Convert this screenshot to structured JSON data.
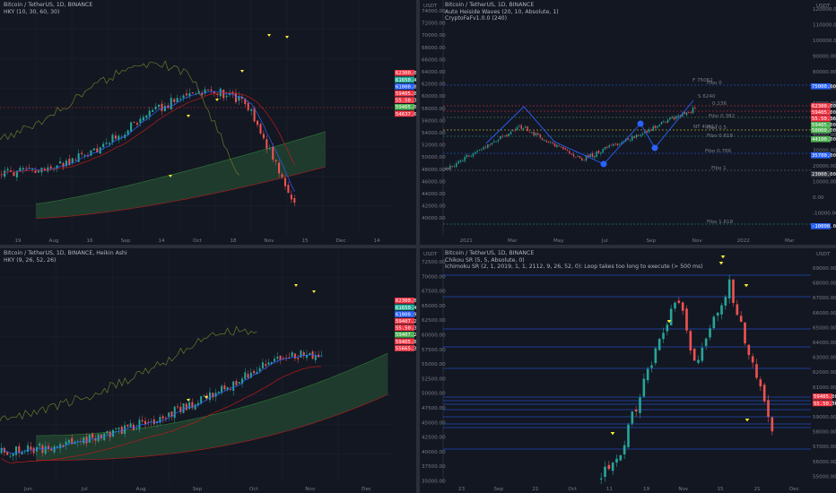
{
  "panes": [
    {
      "id": "p1",
      "legend": [
        "Bitcoin / TetherUS, 1D, BINANCE",
        "HKY (10, 30, 60, 30)"
      ],
      "price_axis": {
        "currency": "",
        "ticks": []
      },
      "time_axis": [
        "19",
        "Aug",
        "16",
        "Sep",
        "14",
        "Oct",
        "18",
        "Nov",
        "15",
        "Dec",
        "14"
      ],
      "price_tags": [
        {
          "text": "62300.00",
          "color": "#f23645"
        },
        {
          "text": "61650.46",
          "color": "#22ab94"
        },
        {
          "text": "61000.00",
          "color": "#2962ff"
        },
        {
          "text": "59405.00",
          "color": "#f23645"
        },
        {
          "text": "55.50.36",
          "color": "#f23645"
        },
        {
          "text": "59405.00",
          "color": "#4caf50"
        },
        {
          "text": "54637.61",
          "color": "#f23645"
        }
      ]
    },
    {
      "id": "p2",
      "legend": [
        "Bitcoin / TetherUS, 1D, BINANCE",
        "Auto Heiside Waves (20, 10, Absolute, 1)",
        "CryptoFaFv1.0.0 (240)"
      ],
      "left_axis": {
        "currency": "USDT",
        "ticks": [
          "74000.00",
          "72000.00",
          "70000.00",
          "68000.00",
          "66000.00",
          "64000.00",
          "62000.00",
          "60000.00",
          "58000.00",
          "56000.00",
          "54000.00",
          "52000.00",
          "50000.00",
          "48000.00",
          "46000.00",
          "44000.00",
          "42000.00",
          "40000.00"
        ]
      },
      "right_axis": {
        "currency": "USDT",
        "ticks": [
          "120000.00",
          "110000.00",
          "100000.00",
          "90000.00",
          "80000.00",
          "70000.00",
          "60000.00",
          "50000.00",
          "40000.00",
          "30000.00",
          "20000.00",
          "10000.00",
          "0.00",
          "-10000.00"
        ]
      },
      "time_axis": [
        "2021",
        "Mar",
        "May",
        "Jul",
        "Sep",
        "Nov",
        "2022",
        "Mar"
      ],
      "fib_labels": [
        "F 75062",
        "Fibo 0",
        "S 6240",
        "0.236",
        "Fibo 0.382",
        "NT 49517",
        "Fibo 0.5",
        "Fibo 0.618",
        "Fibo 0.786",
        "Fibo 1",
        "Fibo 1.618"
      ],
      "price_tags": [
        {
          "text": "75000.00",
          "color": "#2962ff"
        },
        {
          "text": "62300.00",
          "color": "#f23645"
        },
        {
          "text": "59405.00",
          "color": "#f23645"
        },
        {
          "text": "55.50.36",
          "color": "#f23645"
        },
        {
          "text": "59405.00",
          "color": "#4caf50"
        },
        {
          "text": "50000.00",
          "color": "#4caf50"
        },
        {
          "text": "44100.00",
          "color": "#4caf50"
        },
        {
          "text": "35700.00",
          "color": "#2962ff"
        },
        {
          "text": "23000.00",
          "color": "#363a45"
        },
        {
          "text": "-10000.00",
          "color": "#2962ff"
        }
      ]
    },
    {
      "id": "p3",
      "legend": [
        "Bitcoin / TetherUS, 1D, BINANCE, Heikin Ashi",
        "HKY (9, 26, 52, 26)"
      ],
      "time_axis": [
        "Jun",
        "Jul",
        "Aug",
        "Sep",
        "Oct",
        "Nov",
        "Dec"
      ],
      "price_tags": [
        {
          "text": "62300.00",
          "color": "#f23645"
        },
        {
          "text": "61650.46",
          "color": "#22ab94"
        },
        {
          "text": "61000.91",
          "color": "#2962ff"
        },
        {
          "text": "59407.23",
          "color": "#f23645"
        },
        {
          "text": "55.50.36",
          "color": "#f23645"
        },
        {
          "text": "59407.23",
          "color": "#4caf50"
        },
        {
          "text": "59405.00",
          "color": "#f23645"
        },
        {
          "text": "55665.39",
          "color": "#f23645"
        }
      ]
    },
    {
      "id": "p4",
      "legend": [
        "Bitcoin / TetherUS, 1D, BINANCE",
        "Chikou SR (5, 5, Absolute, 0)",
        "Ichimoku SR (2, 1, 2019, 1, 1, 2112, 9, 26, 52, 0): Loop takes too long to execute (> 500 ms)"
      ],
      "left_axis": {
        "currency": "USDT",
        "ticks": [
          "72500.00",
          "70000.00",
          "67500.00",
          "65000.00",
          "62500.00",
          "60000.00",
          "57500.00",
          "55000.00",
          "52500.00",
          "50000.00",
          "47500.00",
          "45000.00",
          "42500.00",
          "40000.00",
          "37500.00",
          "35000.00"
        ]
      },
      "right_axis": {
        "currency": "USDT",
        "ticks": [
          "69000.00",
          "68000.00",
          "67000.00",
          "66000.00",
          "65000.00",
          "64000.00",
          "63000.00",
          "62000.00",
          "61000.00",
          "60000.00",
          "59000.00",
          "58000.00",
          "57000.00",
          "56000.00",
          "55000.00"
        ]
      },
      "time_axis": [
        "23",
        "Sep",
        "21",
        "Oct",
        "11",
        "19",
        "Nov",
        "15",
        "21",
        "Dec"
      ],
      "price_tags": [
        {
          "text": "59405.00",
          "color": "#f23645"
        },
        {
          "text": "55.50.36",
          "color": "#f23645"
        }
      ]
    }
  ],
  "colors": {
    "bg": "#131722",
    "up": "#26a69a",
    "down": "#ef5350",
    "grid": "#1e222d",
    "text": "#b2b5be",
    "fast": "#2962ff",
    "slow": "#b71c1c",
    "lag": "#6b7a2a",
    "cloud_red": "#3d1418",
    "cloud_green": "#1f3b2e",
    "marker": "#ffeb3b",
    "sr_line": "#2962ff"
  }
}
